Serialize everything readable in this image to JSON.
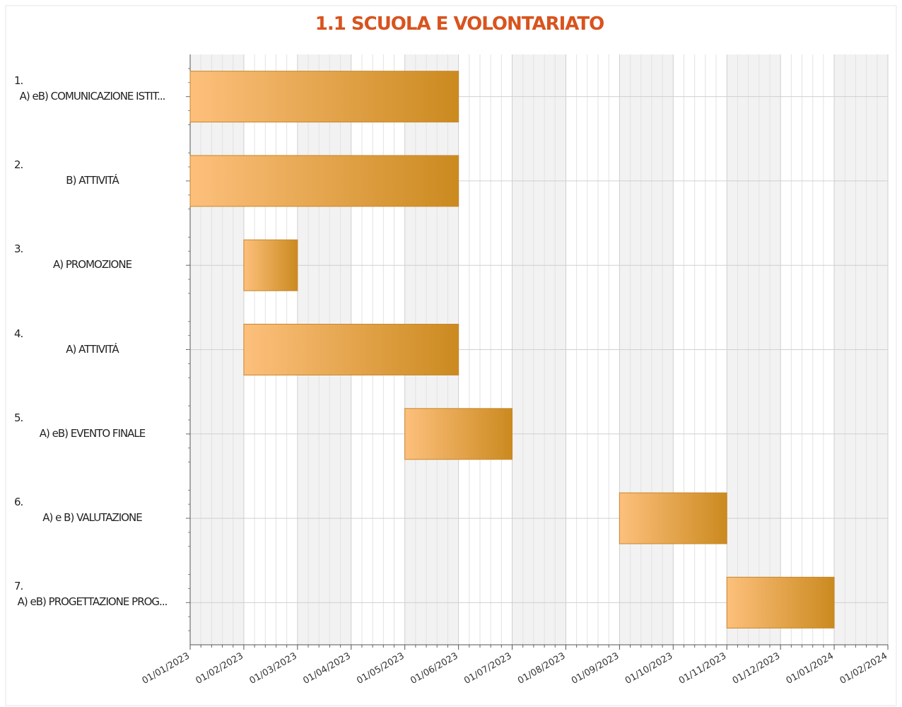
{
  "chart_data": {
    "type": "gantt",
    "title": "1.1 SCUOLA E VOLONTARIATO",
    "tasks": [
      {
        "number": "1.",
        "name": "A) eB) COMUNICAZIONE ISTIT...",
        "start": "01/01/2023",
        "end": "01/06/2023"
      },
      {
        "number": "2.",
        "name": "B) ATTIVITÁ",
        "start": "01/01/2023",
        "end": "01/06/2023"
      },
      {
        "number": "3.",
        "name": "A) PROMOZIONE",
        "start": "01/02/2023",
        "end": "01/03/2023"
      },
      {
        "number": "4.",
        "name": "A) ATTIVITÁ",
        "start": "01/02/2023",
        "end": "01/06/2023"
      },
      {
        "number": "5.",
        "name": "A) eB) EVENTO FINALE",
        "start": "01/05/2023",
        "end": "01/07/2023"
      },
      {
        "number": "6.",
        "name": "A) e B) VALUTAZIONE",
        "start": "01/09/2023",
        "end": "01/11/2023"
      },
      {
        "number": "7.",
        "name": "A) eB) PROGETTAZIONE PROG...",
        "start": "01/11/2023",
        "end": "01/01/2024"
      }
    ],
    "xlim": [
      "01/01/2023",
      "01/02/2024"
    ],
    "xticks": [
      "01/01/2023",
      "01/02/2023",
      "01/03/2023",
      "01/04/2023",
      "01/05/2023",
      "01/06/2023",
      "01/07/2023",
      "01/08/2023",
      "01/09/2023",
      "01/10/2023",
      "01/11/2023",
      "01/12/2023",
      "01/01/2024",
      "01/02/2024"
    ],
    "bar_color_start": "#fdc07c",
    "bar_color_end": "#cb8a1f",
    "grid": true
  }
}
